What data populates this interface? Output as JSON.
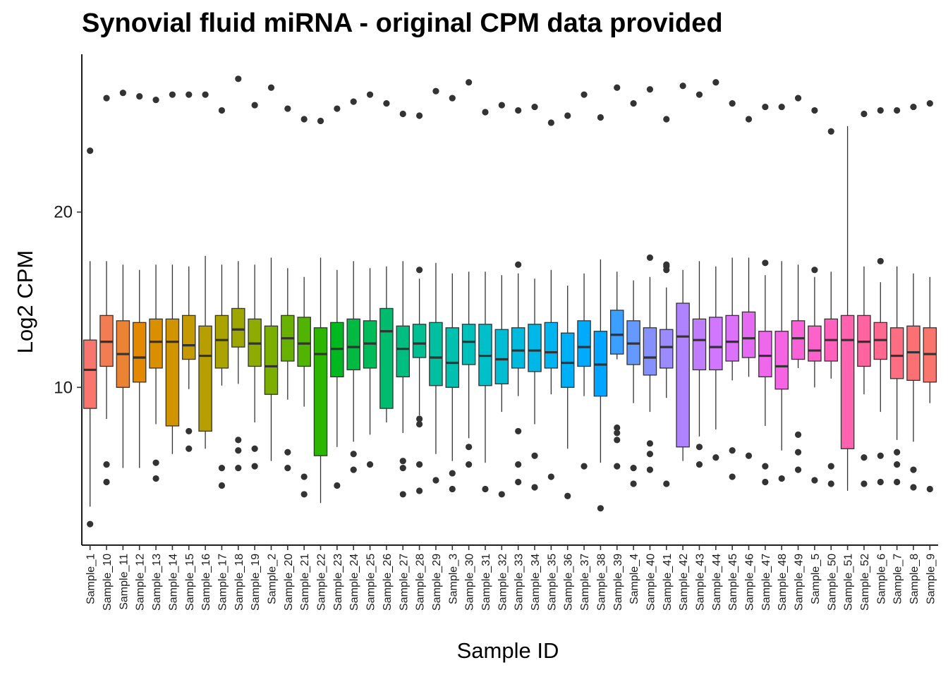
{
  "chart_data": {
    "type": "boxplot",
    "title": "Synovial fluid miRNA - original CPM data provided",
    "xlabel": "Sample ID",
    "ylabel": "Log2 CPM",
    "ylim": [
      1.0,
      29.0
    ],
    "y_ticks": [
      10,
      20
    ],
    "grid": false,
    "legend": "none",
    "categories": [
      "Sample_1",
      "Sample_10",
      "Sample_11",
      "Sample_12",
      "Sample_13",
      "Sample_14",
      "Sample_15",
      "Sample_16",
      "Sample_17",
      "Sample_18",
      "Sample_19",
      "Sample_2",
      "Sample_20",
      "Sample_21",
      "Sample_22",
      "Sample_23",
      "Sample_24",
      "Sample_25",
      "Sample_26",
      "Sample_27",
      "Sample_28",
      "Sample_29",
      "Sample_3",
      "Sample_30",
      "Sample_31",
      "Sample_32",
      "Sample_33",
      "Sample_34",
      "Sample_35",
      "Sample_36",
      "Sample_37",
      "Sample_38",
      "Sample_39",
      "Sample_4",
      "Sample_40",
      "Sample_41",
      "Sample_42",
      "Sample_43",
      "Sample_44",
      "Sample_45",
      "Sample_46",
      "Sample_47",
      "Sample_48",
      "Sample_49",
      "Sample_5",
      "Sample_50",
      "Sample_51",
      "Sample_52",
      "Sample_6",
      "Sample_7",
      "Sample_8",
      "Sample_9"
    ],
    "colors": [
      "#F8766D",
      "#F27D52",
      "#EB8335",
      "#E38900",
      "#DA8F00",
      "#D09400",
      "#C49A00",
      "#B89F00",
      "#ABA300",
      "#9DA700",
      "#8EAB00",
      "#7CAE00",
      "#68B100",
      "#51B400",
      "#2DB600",
      "#00B81F",
      "#00BA42",
      "#00BB5A",
      "#00BD6E",
      "#00BE80",
      "#00BF91",
      "#00C0A0",
      "#00C0AF",
      "#00C0BC",
      "#00BFC8",
      "#00BDD3",
      "#00BBDD",
      "#00B8E7",
      "#00B4EF",
      "#00B0F6",
      "#00ABFD",
      "#00A5FF",
      "#3A9FFF",
      "#6699FF",
      "#8491FF",
      "#9C8AFF",
      "#AF83FF",
      "#C17DFF",
      "#D076FF",
      "#DC71FA",
      "#E66BF3",
      "#EF67EB",
      "#F564E2",
      "#FA62D7",
      "#FD61CA",
      "#FF61BD",
      "#FF62AF",
      "#FF64A0",
      "#FF6891",
      "#FE6D82",
      "#FB7173",
      "#F8766D"
    ],
    "boxes": [
      {
        "q1": 8.8,
        "median": 11.0,
        "q3": 12.7,
        "whisker_low": 3.2,
        "whisker_high": 17.2,
        "outliers": [
          2.2,
          23.5
        ]
      },
      {
        "q1": 11.2,
        "median": 12.6,
        "q3": 14.1,
        "whisker_low": 8.2,
        "whisker_high": 17.2,
        "outliers": [
          5.6,
          4.6,
          26.5
        ]
      },
      {
        "q1": 10.0,
        "median": 11.9,
        "q3": 13.8,
        "whisker_low": 5.4,
        "whisker_high": 17.0,
        "outliers": [
          26.8
        ]
      },
      {
        "q1": 10.3,
        "median": 11.7,
        "q3": 13.7,
        "whisker_low": 5.4,
        "whisker_high": 16.7,
        "outliers": [
          26.6
        ]
      },
      {
        "q1": 11.1,
        "median": 12.6,
        "q3": 13.9,
        "whisker_low": 7.9,
        "whisker_high": 17.0,
        "outliers": [
          5.7,
          4.8,
          26.4
        ]
      },
      {
        "q1": 7.8,
        "median": 12.6,
        "q3": 13.9,
        "whisker_low": 6.2,
        "whisker_high": 17.0,
        "outliers": [
          26.7
        ]
      },
      {
        "q1": 11.6,
        "median": 12.4,
        "q3": 14.1,
        "whisker_low": 9.9,
        "whisker_high": 16.9,
        "outliers": [
          7.5,
          6.5,
          26.7
        ]
      },
      {
        "q1": 7.5,
        "median": 11.8,
        "q3": 13.5,
        "whisker_low": 6.5,
        "whisker_high": 17.5,
        "outliers": [
          26.7
        ]
      },
      {
        "q1": 11.1,
        "median": 12.7,
        "q3": 14.1,
        "whisker_low": 10.1,
        "whisker_high": 17.0,
        "outliers": [
          5.4,
          4.4,
          25.8
        ]
      },
      {
        "q1": 12.3,
        "median": 13.3,
        "q3": 14.5,
        "whisker_low": 10.2,
        "whisker_high": 17.2,
        "outliers": [
          7.0,
          6.4,
          5.4,
          27.6
        ]
      },
      {
        "q1": 11.2,
        "median": 12.5,
        "q3": 13.9,
        "whisker_low": 8.0,
        "whisker_high": 17.0,
        "outliers": [
          6.5,
          5.5,
          26.1
        ]
      },
      {
        "q1": 9.6,
        "median": 11.2,
        "q3": 13.5,
        "whisker_low": 5.8,
        "whisker_high": 17.4,
        "outliers": [
          27.1
        ]
      },
      {
        "q1": 11.5,
        "median": 12.8,
        "q3": 14.1,
        "whisker_low": 9.3,
        "whisker_high": 16.8,
        "outliers": [
          6.3,
          5.4,
          25.9
        ]
      },
      {
        "q1": 11.2,
        "median": 12.5,
        "q3": 14.0,
        "whisker_low": 8.9,
        "whisker_high": 16.3,
        "outliers": [
          4.9,
          3.9,
          25.3
        ]
      },
      {
        "q1": 6.1,
        "median": 11.9,
        "q3": 13.4,
        "whisker_low": 3.4,
        "whisker_high": 17.4,
        "outliers": [
          25.2
        ]
      },
      {
        "q1": 10.6,
        "median": 12.2,
        "q3": 13.7,
        "whisker_low": 6.6,
        "whisker_high": 16.7,
        "outliers": [
          4.4,
          25.9
        ]
      },
      {
        "q1": 11.0,
        "median": 12.3,
        "q3": 13.9,
        "whisker_low": 6.9,
        "whisker_high": 17.2,
        "outliers": [
          6.2,
          5.3,
          26.3
        ]
      },
      {
        "q1": 11.1,
        "median": 12.5,
        "q3": 13.8,
        "whisker_low": 7.3,
        "whisker_high": 16.8,
        "outliers": [
          5.6,
          26.7
        ]
      },
      {
        "q1": 8.8,
        "median": 13.2,
        "q3": 14.5,
        "whisker_low": 8.0,
        "whisker_high": 16.9,
        "outliers": [
          26.2
        ]
      },
      {
        "q1": 10.6,
        "median": 12.2,
        "q3": 13.5,
        "whisker_low": 7.4,
        "whisker_high": 17.2,
        "outliers": [
          5.8,
          5.4,
          3.9,
          25.6
        ]
      },
      {
        "q1": 11.7,
        "median": 12.5,
        "q3": 13.6,
        "whisker_low": 8.4,
        "whisker_high": 16.2,
        "outliers": [
          8.2,
          7.9,
          5.6,
          4.1,
          16.7,
          25.5
        ]
      },
      {
        "q1": 10.1,
        "median": 11.7,
        "q3": 13.7,
        "whisker_low": 6.2,
        "whisker_high": 17.1,
        "outliers": [
          4.7,
          26.9
        ]
      },
      {
        "q1": 10.0,
        "median": 11.4,
        "q3": 13.4,
        "whisker_low": 5.8,
        "whisker_high": 16.5,
        "outliers": [
          5.1,
          4.2,
          26.5
        ]
      },
      {
        "q1": 11.3,
        "median": 12.6,
        "q3": 13.6,
        "whisker_low": 7.1,
        "whisker_high": 16.6,
        "outliers": [
          6.6,
          5.6,
          27.4
        ]
      },
      {
        "q1": 10.1,
        "median": 11.8,
        "q3": 13.6,
        "whisker_low": 5.7,
        "whisker_high": 16.6,
        "outliers": [
          4.2,
          25.7
        ]
      },
      {
        "q1": 10.2,
        "median": 11.6,
        "q3": 13.3,
        "whisker_low": 8.6,
        "whisker_high": 16.4,
        "outliers": [
          3.9,
          26.1
        ]
      },
      {
        "q1": 11.1,
        "median": 12.1,
        "q3": 13.4,
        "whisker_low": 9.5,
        "whisker_high": 16.5,
        "outliers": [
          7.5,
          5.6,
          4.6,
          17.0,
          25.8
        ]
      },
      {
        "q1": 10.9,
        "median": 12.1,
        "q3": 13.6,
        "whisker_low": 7.9,
        "whisker_high": 16.2,
        "outliers": [
          6.1,
          4.3,
          26.0
        ]
      },
      {
        "q1": 11.1,
        "median": 12.0,
        "q3": 13.7,
        "whisker_low": 9.6,
        "whisker_high": 16.7,
        "outliers": [
          4.9,
          25.1
        ]
      },
      {
        "q1": 10.0,
        "median": 11.4,
        "q3": 13.1,
        "whisker_low": 6.5,
        "whisker_high": 15.8,
        "outliers": [
          3.8,
          25.5
        ]
      },
      {
        "q1": 11.2,
        "median": 12.3,
        "q3": 13.8,
        "whisker_low": 9.5,
        "whisker_high": 16.5,
        "outliers": [
          5.5,
          26.7
        ]
      },
      {
        "q1": 9.5,
        "median": 11.3,
        "q3": 13.2,
        "whisker_low": 5.7,
        "whisker_high": 17.3,
        "outliers": [
          3.1,
          25.4
        ]
      },
      {
        "q1": 11.9,
        "median": 13.0,
        "q3": 14.4,
        "whisker_low": 11.6,
        "whisker_high": 16.6,
        "outliers": [
          7.7,
          7.4,
          7.0,
          5.5,
          27.1
        ]
      },
      {
        "q1": 11.3,
        "median": 12.5,
        "q3": 13.8,
        "whisker_low": 9.1,
        "whisker_high": 16.1,
        "outliers": [
          5.4,
          4.5,
          26.2
        ]
      },
      {
        "q1": 10.7,
        "median": 11.7,
        "q3": 13.4,
        "whisker_low": 8.6,
        "whisker_high": 16.3,
        "outliers": [
          6.8,
          6.2,
          5.3,
          17.4,
          27.0
        ]
      },
      {
        "q1": 11.1,
        "median": 12.3,
        "q3": 13.3,
        "whisker_low": 9.4,
        "whisker_high": 15.7,
        "outliers": [
          4.5,
          16.7,
          16.9,
          17.0,
          25.3
        ]
      },
      {
        "q1": 6.6,
        "median": 12.9,
        "q3": 14.8,
        "whisker_low": 5.8,
        "whisker_high": 16.7,
        "outliers": [
          27.2
        ]
      },
      {
        "q1": 11.0,
        "median": 12.7,
        "q3": 13.9,
        "whisker_low": 7.2,
        "whisker_high": 17.2,
        "outliers": [
          6.6,
          5.6,
          26.7
        ]
      },
      {
        "q1": 11.0,
        "median": 12.3,
        "q3": 14.0,
        "whisker_low": 7.6,
        "whisker_high": 16.9,
        "outliers": [
          6.0,
          27.4
        ]
      },
      {
        "q1": 11.5,
        "median": 12.6,
        "q3": 14.1,
        "whisker_low": 10.4,
        "whisker_high": 17.4,
        "outliers": [
          6.4,
          4.9,
          26.2
        ]
      },
      {
        "q1": 11.7,
        "median": 12.8,
        "q3": 14.3,
        "whisker_low": 10.6,
        "whisker_high": 17.4,
        "outliers": [
          6.1,
          25.3
        ]
      },
      {
        "q1": 10.6,
        "median": 11.8,
        "q3": 13.2,
        "whisker_low": 7.8,
        "whisker_high": 16.4,
        "outliers": [
          5.5,
          4.6,
          17.1,
          26.0
        ]
      },
      {
        "q1": 9.9,
        "median": 11.2,
        "q3": 13.2,
        "whisker_low": 6.4,
        "whisker_high": 17.2,
        "outliers": [
          4.8,
          26.0
        ]
      },
      {
        "q1": 11.6,
        "median": 12.8,
        "q3": 13.8,
        "whisker_low": 11.1,
        "whisker_high": 17.0,
        "outliers": [
          7.3,
          6.3,
          5.3,
          26.5
        ]
      },
      {
        "q1": 11.5,
        "median": 12.1,
        "q3": 13.5,
        "whisker_low": 10.0,
        "whisker_high": 16.3,
        "outliers": [
          4.7,
          16.7,
          25.8
        ]
      },
      {
        "q1": 11.5,
        "median": 12.7,
        "q3": 13.9,
        "whisker_low": 10.5,
        "whisker_high": 16.6,
        "outliers": [
          5.5,
          4.5,
          24.6
        ]
      },
      {
        "q1": 6.5,
        "median": 12.7,
        "q3": 14.1,
        "whisker_low": 4.1,
        "whisker_high": 24.9,
        "outliers": []
      },
      {
        "q1": 11.2,
        "median": 12.6,
        "q3": 14.1,
        "whisker_low": 9.6,
        "whisker_high": 16.9,
        "outliers": [
          6.0,
          4.5,
          25.6
        ]
      },
      {
        "q1": 11.6,
        "median": 12.7,
        "q3": 13.7,
        "whisker_low": 8.6,
        "whisker_high": 16.0,
        "outliers": [
          6.1,
          4.6,
          17.2,
          25.8
        ]
      },
      {
        "q1": 10.5,
        "median": 11.8,
        "q3": 13.4,
        "whisker_low": 7.0,
        "whisker_high": 16.9,
        "outliers": [
          6.3,
          5.6,
          4.6,
          25.8
        ]
      },
      {
        "q1": 10.4,
        "median": 12.0,
        "q3": 13.5,
        "whisker_low": 6.9,
        "whisker_high": 16.5,
        "outliers": [
          5.3,
          4.3,
          26.0
        ]
      },
      {
        "q1": 10.3,
        "median": 11.9,
        "q3": 13.4,
        "whisker_low": 9.1,
        "whisker_high": 16.3,
        "outliers": [
          4.2,
          26.2
        ]
      }
    ]
  }
}
